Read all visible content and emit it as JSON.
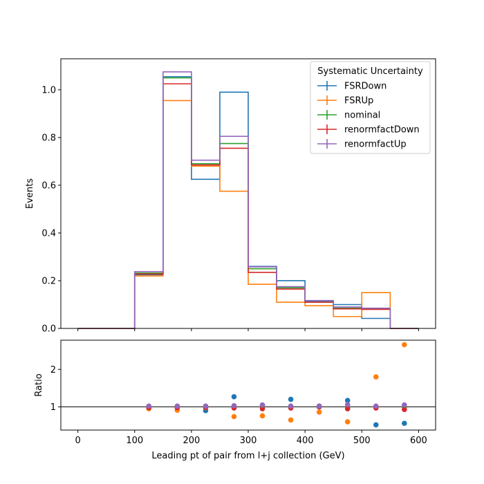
{
  "chart_data": [
    {
      "type": "step",
      "title": "",
      "xlabel": "",
      "ylabel": "Events",
      "xlim": [
        -30,
        630
      ],
      "ylim": [
        0,
        1.13
      ],
      "xticks": [
        0,
        100,
        200,
        300,
        400,
        500,
        600
      ],
      "yticks": [
        0.0,
        0.2,
        0.4,
        0.6,
        0.8,
        1.0
      ],
      "ytick_labels": [
        "0.0",
        "0.2",
        "0.4",
        "0.6",
        "0.8",
        "1.0"
      ],
      "bin_edges": [
        0,
        50,
        100,
        150,
        200,
        250,
        300,
        350,
        400,
        450,
        500,
        550,
        600
      ],
      "legend": {
        "title": "Systematic Uncertainty",
        "placement": "top-right"
      },
      "series": [
        {
          "name": "FSRDown",
          "color": "#1f77b4",
          "values": [
            0,
            0,
            0.225,
            1.055,
            0.625,
            0.99,
            0.26,
            0.2,
            0.115,
            0.1,
            0.042,
            0,
            0
          ]
        },
        {
          "name": "FSRUp",
          "color": "#ff7f0e",
          "values": [
            0,
            0,
            0.22,
            0.955,
            0.68,
            0.575,
            0.185,
            0.11,
            0.095,
            0.05,
            0.15,
            0,
            0
          ]
        },
        {
          "name": "nominal",
          "color": "#2ca02c",
          "values": [
            0,
            0,
            0.232,
            1.05,
            0.69,
            0.775,
            0.25,
            0.17,
            0.11,
            0.085,
            0.083,
            0,
            0
          ]
        },
        {
          "name": "renormfactDown",
          "color": "#d62728",
          "values": [
            0,
            0,
            0.228,
            1.025,
            0.685,
            0.755,
            0.235,
            0.165,
            0.11,
            0.082,
            0.08,
            0,
            0
          ]
        },
        {
          "name": "renormfactUp",
          "color": "#9467bd",
          "values": [
            0,
            0,
            0.238,
            1.075,
            0.705,
            0.805,
            0.258,
            0.175,
            0.117,
            0.09,
            0.085,
            0,
            0
          ]
        }
      ]
    },
    {
      "type": "scatter",
      "title": "",
      "xlabel": "Leading pt of pair from l+j collection (GeV)",
      "ylabel": "Ratio",
      "xlim": [
        -30,
        630
      ],
      "ylim": [
        0.38,
        2.78
      ],
      "xticks": [
        0,
        100,
        200,
        300,
        400,
        500,
        600
      ],
      "xtick_labels": [
        "0",
        "100",
        "200",
        "300",
        "400",
        "500",
        "600"
      ],
      "yticks": [
        1,
        2
      ],
      "ytick_labels": [
        "1",
        "2"
      ],
      "reference_line": 1,
      "x": [
        125,
        175,
        225,
        275,
        325,
        375,
        425,
        475,
        525,
        575
      ],
      "series": [
        {
          "name": "FSRDown",
          "color": "#1f77b4",
          "values": [
            0.97,
            1.0,
            0.9,
            1.27,
            1.04,
            1.2,
            1.02,
            1.17,
            0.52,
            0.56
          ]
        },
        {
          "name": "FSRUp",
          "color": "#ff7f0e",
          "values": [
            0.95,
            0.91,
            0.98,
            0.74,
            0.76,
            0.65,
            0.86,
            0.6,
            1.8,
            2.66
          ]
        },
        {
          "name": "nominal",
          "color": "#2ca02c",
          "values": [
            1.0,
            1.0,
            1.0,
            1.0,
            1.0,
            1.0,
            1.0,
            1.0,
            1.0,
            1.0
          ]
        },
        {
          "name": "renormfactDown",
          "color": "#d62728",
          "values": [
            0.98,
            0.98,
            0.99,
            0.97,
            0.95,
            0.97,
            1.0,
            0.95,
            0.97,
            0.93
          ]
        },
        {
          "name": "renormfactUp",
          "color": "#9467bd",
          "values": [
            1.02,
            1.02,
            1.02,
            1.03,
            1.05,
            1.02,
            1.02,
            1.06,
            1.02,
            1.05
          ]
        }
      ]
    }
  ]
}
